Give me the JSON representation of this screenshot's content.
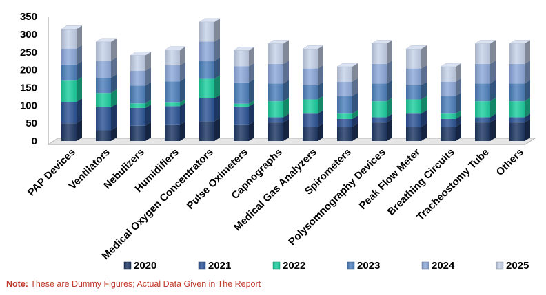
{
  "chart_data": {
    "type": "bar",
    "stacked": true,
    "ylim": [
      0,
      350
    ],
    "yticks": [
      0,
      50,
      100,
      150,
      200,
      250,
      300,
      350
    ],
    "categories": [
      "PAP Devices",
      "Ventilators",
      "Nebulizers",
      "Humidifiers",
      "Medical Oxygen Concentrators",
      "Pulse Oximeters",
      "Capnographs",
      "Medical Gas Analyzers",
      "Spirometers",
      "Polysomnography Devices",
      "Peak Flow Meter",
      "Breathing Circuits",
      "Tracheostomy Tube",
      "Others"
    ],
    "series": [
      {
        "name": "2020",
        "color": "#1f3864",
        "values": [
          50,
          30,
          43,
          45,
          55,
          45,
          52,
          40,
          40,
          52,
          40,
          40,
          52,
          52
        ]
      },
      {
        "name": "2021",
        "color": "#2e5597",
        "values": [
          60,
          65,
          50,
          53,
          65,
          52,
          15,
          37,
          22,
          15,
          37,
          22,
          15,
          15
        ]
      },
      {
        "name": "2022",
        "color": "#1ecfa0",
        "values": [
          60,
          40,
          13,
          10,
          55,
          8,
          45,
          40,
          15,
          45,
          40,
          15,
          45,
          45
        ]
      },
      {
        "name": "2023",
        "color": "#4f81bd",
        "values": [
          45,
          43,
          50,
          60,
          50,
          60,
          50,
          40,
          50,
          50,
          40,
          50,
          50,
          50
        ]
      },
      {
        "name": "2024",
        "color": "#8eaadb",
        "values": [
          45,
          48,
          42,
          45,
          55,
          45,
          55,
          47,
          40,
          55,
          47,
          40,
          55,
          55
        ]
      },
      {
        "name": "2025",
        "color": "#c7d3ea",
        "values": [
          55,
          53,
          43,
          43,
          55,
          45,
          57,
          55,
          42,
          57,
          55,
          42,
          57,
          57
        ]
      }
    ],
    "legend_position": "bottom",
    "grid": false
  },
  "note": {
    "label": "Note:",
    "text": " These are Dummy Figures; Actual Data Given in The Report"
  }
}
